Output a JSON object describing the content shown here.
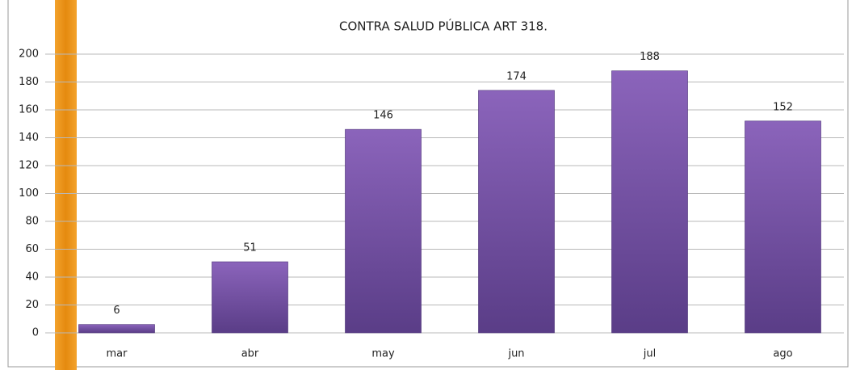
{
  "chart_data": {
    "type": "bar",
    "title": "CONTRA SALUD PÚBLICA ART 318.",
    "categories": [
      "mar",
      "abr",
      "may",
      "jun",
      "jul",
      "ago"
    ],
    "values": [
      6,
      51,
      146,
      174,
      188,
      152
    ],
    "color": "#7b55aa",
    "ylim": [
      0,
      200
    ],
    "yticks": [
      0,
      20,
      40,
      60,
      80,
      100,
      120,
      140,
      160,
      180,
      200
    ],
    "grid": true
  }
}
